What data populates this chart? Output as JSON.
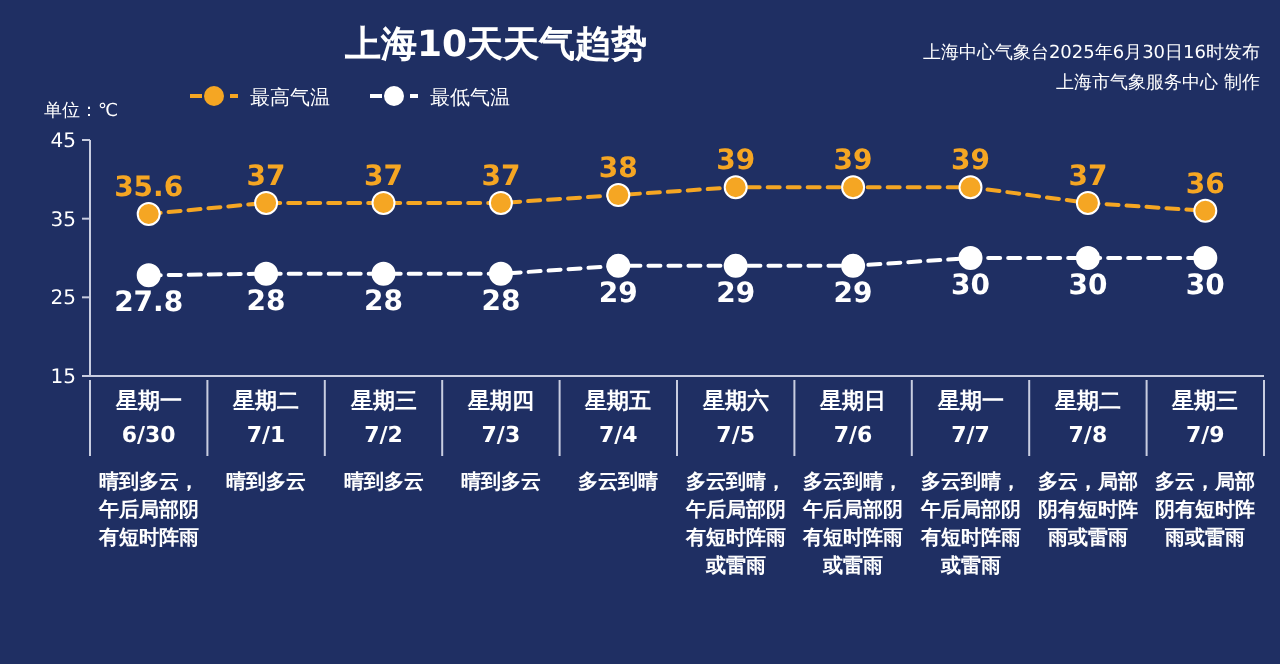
{
  "chart_data": {
    "type": "line",
    "title": "上海10天天气趋势",
    "subtitle": "上海中心气象台2025年6月30日16时发布",
    "ylabel": "单位：℃",
    "annotations": [
      "上海市气象服务中心 制作",
      "晴到多云，午后局部阴有短时阵雨",
      "晴到多云",
      "晴到多云",
      "晴到多云",
      "多云到晴",
      "多云到晴，午后局部阴有短时阵雨或雷雨",
      "多云到晴，午后局部阴有短时阵雨或雷雨",
      "多云到晴，午后局部阴有短时阵雨或雷雨",
      "多云，局部阴有短时阵雨或雷雨",
      "多云，局部阴有短时阵雨或雷雨"
    ],
    "categories": [
      "星期一\n6/30",
      "星期二\n7/1",
      "星期三\n7/2",
      "星期四\n7/3",
      "星期五\n7/4",
      "星期六\n7/5",
      "星期日\n7/6",
      "星期一\n7/7",
      "星期二\n7/8",
      "星期三\n7/9"
    ],
    "series": [
      {
        "name": "最高气温",
        "color": "#f5a623",
        "values": [
          35.6,
          37,
          37,
          37,
          38,
          39,
          39,
          39,
          37,
          36
        ]
      },
      {
        "name": "最低气温",
        "color": "#ffffff",
        "values": [
          27.8,
          28,
          28,
          28,
          29,
          29,
          29,
          30,
          30,
          30
        ]
      }
    ],
    "ylim": [
      15,
      45
    ],
    "yticks": [
      15,
      25,
      35,
      45
    ],
    "data_labels": true,
    "legend": "top left",
    "marker": "circle",
    "line_style": "dashed",
    "grid": false
  }
}
